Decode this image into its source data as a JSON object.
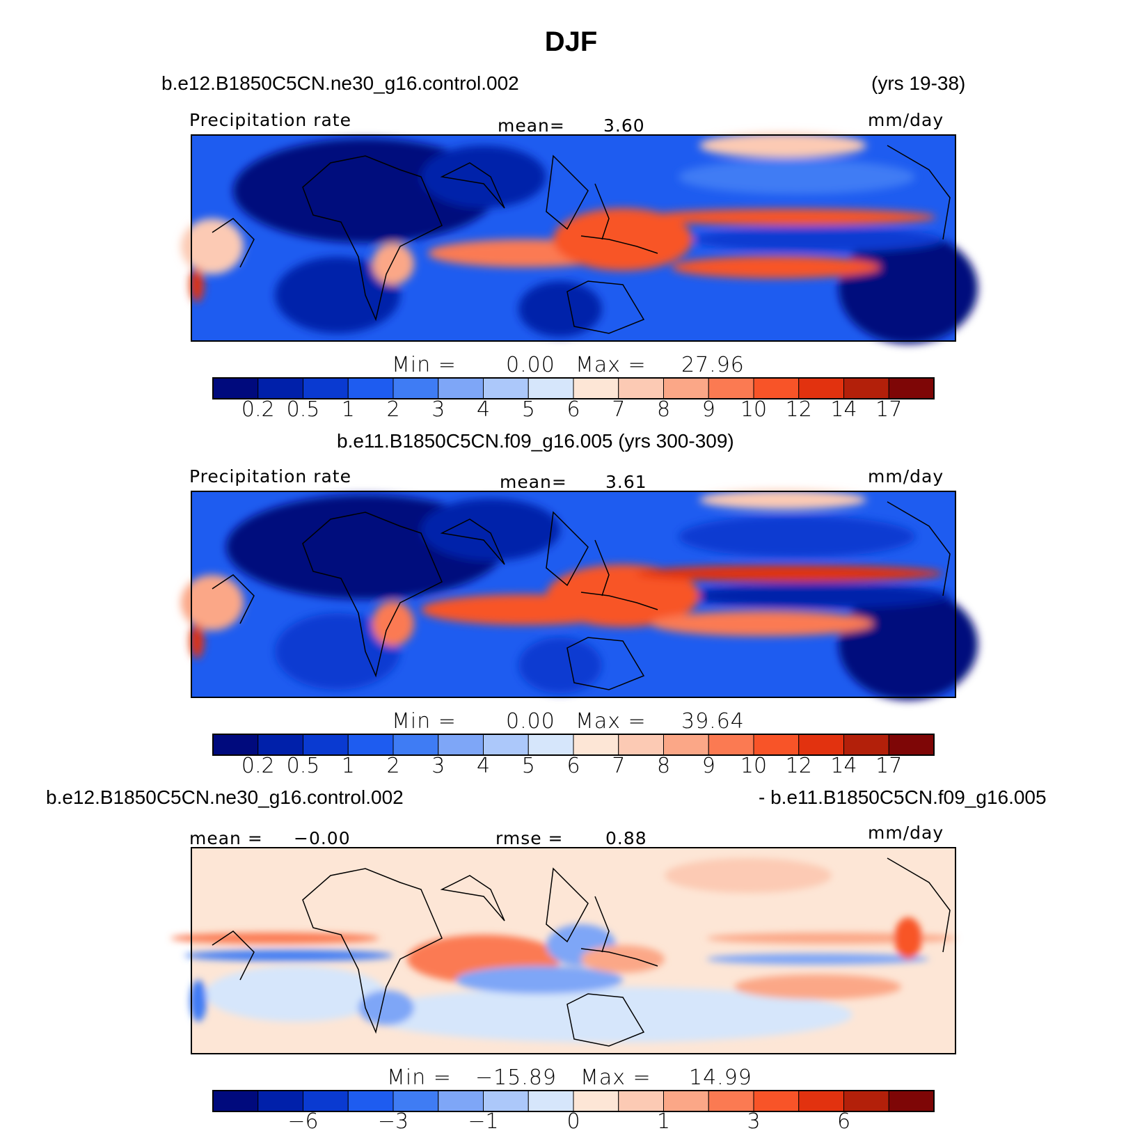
{
  "figure": {
    "title": "DJF",
    "units": "mm/day"
  },
  "colors": {
    "palette": [
      "#000a7d",
      "#0020aa",
      "#0a3ad1",
      "#1e5cf0",
      "#3f7cf4",
      "#7ea6f7",
      "#acc8fa",
      "#d6e6fb",
      "#fde6d6",
      "#fccab4",
      "#fba787",
      "#fb7a52",
      "#f85428",
      "#e2320f",
      "#b3200a",
      "#7e0606"
    ]
  },
  "chart_data": [
    {
      "type": "heatmap",
      "panel": "top",
      "case_label": "b.e12.B1850C5CN.ne30_g16.control.002",
      "years_label": "(yrs 19-38)",
      "variable_label": "Precipitation rate",
      "units": "mm/day",
      "mean_label": "mean=",
      "mean_value": "3.60",
      "min_label": "Min  =",
      "min_value": "0.00",
      "max_label": "Max  =",
      "max_value": "27.96",
      "colorbar_levels": [
        "0.2",
        "0.5",
        "1",
        "2",
        "3",
        "4",
        "5",
        "6",
        "7",
        "8",
        "9",
        "10",
        "12",
        "14",
        "17"
      ]
    },
    {
      "type": "heatmap",
      "panel": "middle",
      "case_label": "b.e11.B1850C5CN.f09_g16.005 (yrs 300-309)",
      "variable_label": "Precipitation rate",
      "units": "mm/day",
      "mean_label": "mean=",
      "mean_value": "3.61",
      "min_label": "Min  =",
      "min_value": "0.00",
      "max_label": "Max  =",
      "max_value": "39.64",
      "colorbar_levels": [
        "0.2",
        "0.5",
        "1",
        "2",
        "3",
        "4",
        "5",
        "6",
        "7",
        "8",
        "9",
        "10",
        "12",
        "14",
        "17"
      ]
    },
    {
      "type": "heatmap",
      "panel": "bottom",
      "case_label_left": "b.e12.B1850C5CN.ne30_g16.control.002",
      "case_label_right": "- b.e11.B1850C5CN.f09_g16.005",
      "units": "mm/day",
      "mean_label": "mean =",
      "mean_value": "−0.00",
      "rmse_label": "rmse =",
      "rmse_value": "0.88",
      "min_label": "Min  =",
      "min_value": "−15.89",
      "max_label": "Max  =",
      "max_value": "14.99",
      "colorbar_levels": [
        "−6",
        "−3",
        "−1",
        "0",
        "1",
        "3",
        "6"
      ]
    }
  ]
}
